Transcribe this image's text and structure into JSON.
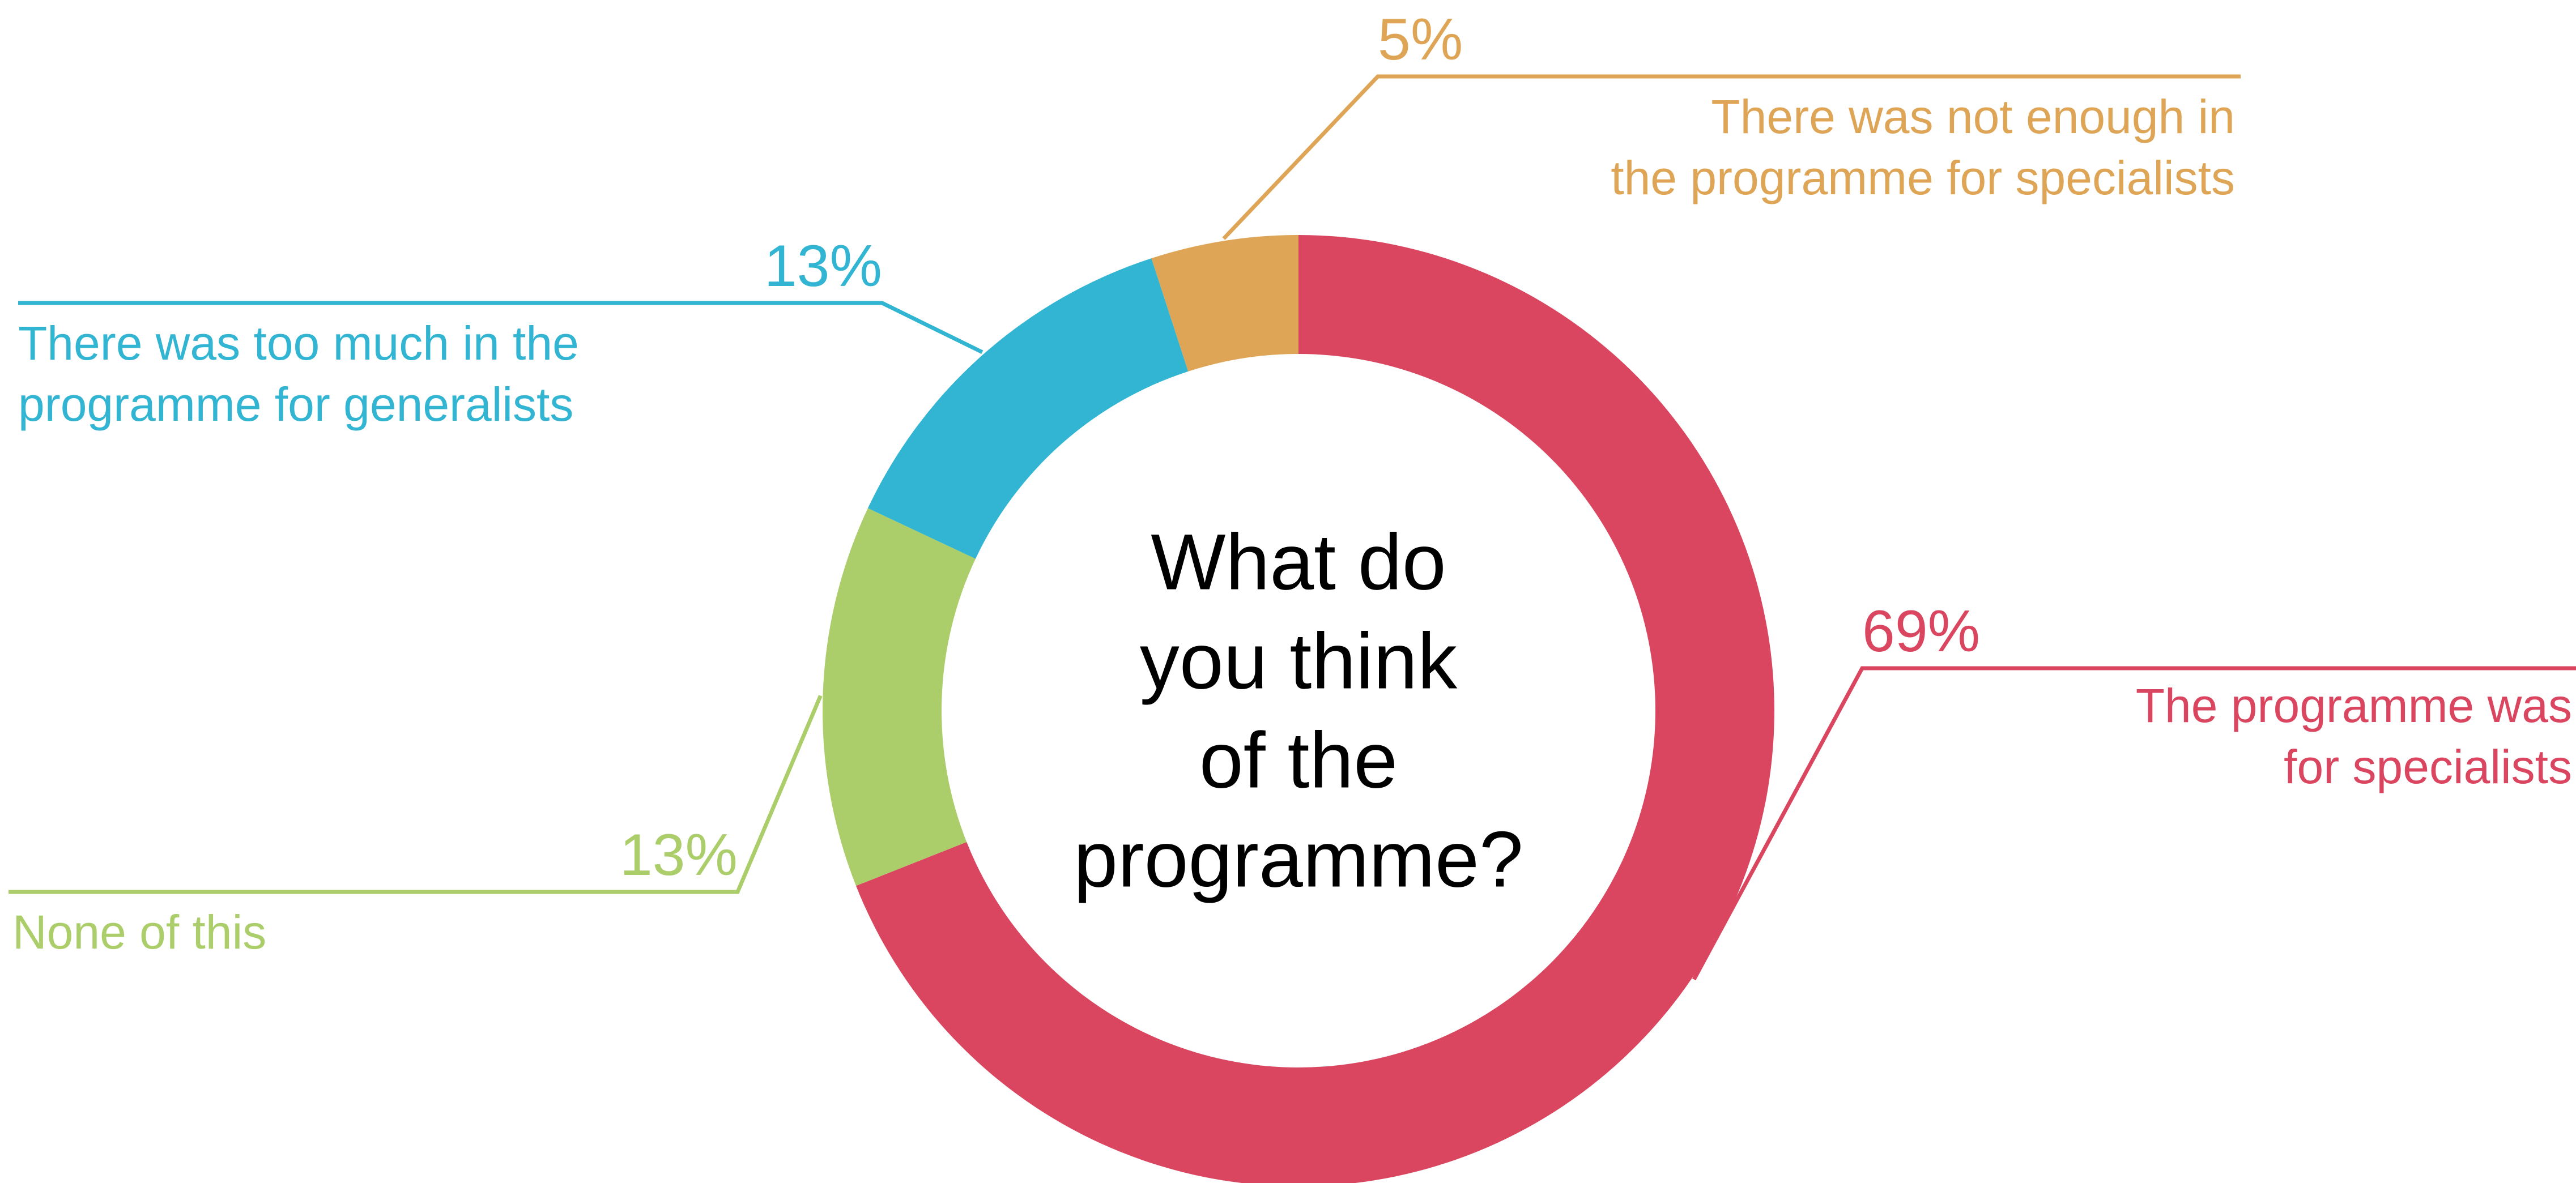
{
  "chart_data": {
    "type": "pie",
    "variant": "donut",
    "title": "",
    "center_text": [
      "What do",
      "you think",
      "of the",
      "programme?"
    ],
    "slices": [
      {
        "label_lines": [
          "The programme was",
          "for specialists"
        ],
        "value": 69,
        "value_label": "69%",
        "color": "#DA4660"
      },
      {
        "label_lines": [
          "None of this"
        ],
        "value": 13,
        "value_label": "13%",
        "color": "#ABCD6A"
      },
      {
        "label_lines": [
          "There was too much in the",
          "programme for generalists"
        ],
        "value": 13,
        "value_label": "13%",
        "color": "#31B5D2"
      },
      {
        "label_lines": [
          "There was not enough in",
          "the programme for specialists"
        ],
        "value": 5,
        "value_label": "5%",
        "color": "#DFA556"
      }
    ],
    "legend": "none",
    "grid": false
  }
}
